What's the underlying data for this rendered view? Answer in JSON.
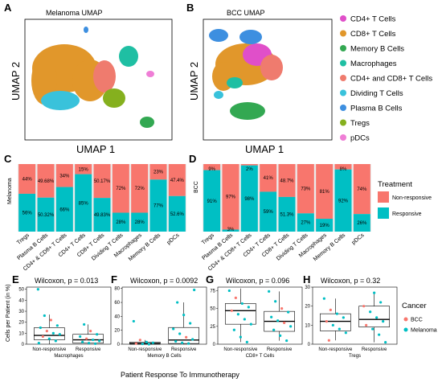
{
  "panels": {
    "A": {
      "label": "A",
      "title": "Melanoma UMAP",
      "xlabel": "UMAP 1",
      "ylabel": "UMAP 2"
    },
    "B": {
      "label": "B",
      "title": "BCC UMAP",
      "xlabel": "UMAP 1",
      "ylabel": "UMAP 2"
    },
    "C": {
      "label": "C",
      "ylabel": "Melanoma"
    },
    "D": {
      "label": "D",
      "ylabel": "BCC"
    },
    "E": {
      "label": "E",
      "title": "Wilcoxon, p = 0.013",
      "xlabel": "Macrophages"
    },
    "F": {
      "label": "F",
      "title": "Wilcoxon, p = 0.0092",
      "xlabel": "Memory B Cells"
    },
    "G": {
      "label": "G",
      "title": "Wilcoxon, p = 0.096",
      "xlabel": "CD8+ T Cells"
    },
    "H": {
      "label": "H",
      "title": "Wilcoxon, p = 0.32",
      "xlabel": "Tregs"
    }
  },
  "cell_legend": [
    {
      "label": "CD4+ T Cells",
      "color": "#e04fc9"
    },
    {
      "label": "CD8+ T Cells",
      "color": "#e1972b"
    },
    {
      "label": "Memory B Cells",
      "color": "#33a852"
    },
    {
      "label": "Macrophages",
      "color": "#1fbfa3"
    },
    {
      "label": "CD4+ and CD8+ T Cells",
      "color": "#ef7b6e"
    },
    {
      "label": "Dividing T Cells",
      "color": "#39c2db"
    },
    {
      "label": "Plasma B Cells",
      "color": "#3d8fe0"
    },
    {
      "label": "Tregs",
      "color": "#85b01e"
    },
    {
      "label": "pDCs",
      "color": "#ef7ed6"
    }
  ],
  "treatment_legend": {
    "title": "Treatment",
    "items": [
      {
        "label": "Non-responsive",
        "color": "#f8766d"
      },
      {
        "label": "Responsive",
        "color": "#00bfc4"
      }
    ]
  },
  "cancer_legend": {
    "title": "Cancer",
    "items": [
      {
        "label": "BCC",
        "color": "#f8766d"
      },
      {
        "label": "Melanoma",
        "color": "#00bfc4"
      }
    ]
  },
  "box_ylabel": "Cells per Patient (in %)",
  "box_xlabel_main": "Patient Response To Immunotherapy",
  "chart_data": [
    {
      "type": "bar",
      "panel": "C",
      "stacked": true,
      "categories": [
        "Tregs",
        "Plasma B Cells",
        "CD4+ & CD8+ T Cells",
        "CD4+ T Cells",
        "CD8+ T Cells",
        "Dividing T Cells",
        "Macrophages",
        "Memory B Cells",
        "pDCs"
      ],
      "series": [
        {
          "name": "Non-responsive",
          "values": [
            44,
            49.68,
            34,
            15,
            50.17,
            72,
            72,
            23,
            47.4
          ],
          "labels": [
            "44%",
            "49.68%",
            "34%",
            "15%",
            "50.17%",
            "72%",
            "72%",
            "23%",
            "47.4%"
          ]
        },
        {
          "name": "Responsive",
          "values": [
            56,
            50.32,
            66,
            85,
            49.83,
            28,
            28,
            77,
            52.6
          ],
          "labels": [
            "56%",
            "50.32%",
            "66%",
            "85%",
            "49.83%",
            "28%",
            "28%",
            "77%",
            "52.6%"
          ]
        }
      ]
    },
    {
      "type": "bar",
      "panel": "D",
      "stacked": true,
      "categories": [
        "Tregs",
        "Plasma B Cells",
        "CD4+ & CD8+ T Cells",
        "CD4+ T Cells",
        "CD8+ T Cells",
        "Dividing T Cells",
        "Macrophages",
        "Memory B Cells",
        "pDCs"
      ],
      "series": [
        {
          "name": "Non-responsive",
          "values": [
            9,
            97,
            2,
            41,
            48.7,
            73,
            81,
            8,
            74
          ],
          "labels": [
            "9%",
            "97%",
            "2%",
            "41%",
            "48.7%",
            "73%",
            "81%",
            "8%",
            "74%"
          ]
        },
        {
          "name": "Responsive",
          "values": [
            91,
            3,
            98,
            59,
            51.3,
            27,
            19,
            92,
            26
          ],
          "labels": [
            "91%",
            "3%",
            "98%",
            "59%",
            "51.3%",
            "27%",
            "19%",
            "92%",
            "26%"
          ]
        }
      ]
    },
    {
      "type": "box",
      "panel": "E",
      "categories": [
        "Non-responsive",
        "Responsive"
      ],
      "ylim": [
        0,
        52
      ],
      "yticks": [
        0,
        10,
        20,
        30,
        40,
        50
      ],
      "boxes": [
        {
          "q1": 4,
          "median": 8,
          "q3": 15,
          "min": 0,
          "max": 27
        },
        {
          "q1": 1,
          "median": 4,
          "q3": 9,
          "min": 0,
          "max": 18
        }
      ],
      "points": [
        {
          "group": 0,
          "y": 50,
          "cancer": "Melanoma"
        },
        {
          "group": 0,
          "y": 26,
          "cancer": "Melanoma"
        },
        {
          "group": 0,
          "y": 22,
          "cancer": "BCC"
        },
        {
          "group": 0,
          "y": 17,
          "cancer": "Melanoma"
        },
        {
          "group": 0,
          "y": 15,
          "cancer": "Melanoma"
        },
        {
          "group": 0,
          "y": 12,
          "cancer": "BCC"
        },
        {
          "group": 0,
          "y": 10,
          "cancer": "Melanoma"
        },
        {
          "group": 0,
          "y": 9,
          "cancer": "Melanoma"
        },
        {
          "group": 0,
          "y": 7,
          "cancer": "BCC"
        },
        {
          "group": 0,
          "y": 5,
          "cancer": "Melanoma"
        },
        {
          "group": 0,
          "y": 3,
          "cancer": "Melanoma"
        },
        {
          "group": 0,
          "y": 1,
          "cancer": "Melanoma"
        },
        {
          "group": 1,
          "y": 18,
          "cancer": "Melanoma"
        },
        {
          "group": 1,
          "y": 12,
          "cancer": "BCC"
        },
        {
          "group": 1,
          "y": 9,
          "cancer": "Melanoma"
        },
        {
          "group": 1,
          "y": 7,
          "cancer": "Melanoma"
        },
        {
          "group": 1,
          "y": 5,
          "cancer": "BCC"
        },
        {
          "group": 1,
          "y": 4,
          "cancer": "Melanoma"
        },
        {
          "group": 1,
          "y": 3,
          "cancer": "Melanoma"
        },
        {
          "group": 1,
          "y": 2,
          "cancer": "Melanoma"
        },
        {
          "group": 1,
          "y": 1,
          "cancer": "Melanoma"
        },
        {
          "group": 1,
          "y": 0.5,
          "cancer": "Melanoma"
        }
      ]
    },
    {
      "type": "box",
      "panel": "F",
      "categories": [
        "Non-responsive",
        "Responsive"
      ],
      "ylim": [
        0,
        82
      ],
      "yticks": [
        0,
        20,
        40,
        60,
        80
      ],
      "boxes": [
        {
          "q1": 0,
          "median": 1,
          "q3": 3,
          "min": 0,
          "max": 6
        },
        {
          "q1": 1,
          "median": 6,
          "q3": 24,
          "min": 0,
          "max": 60
        }
      ],
      "points": [
        {
          "group": 0,
          "y": 33,
          "cancer": "Melanoma"
        },
        {
          "group": 0,
          "y": 6,
          "cancer": "BCC"
        },
        {
          "group": 0,
          "y": 3,
          "cancer": "Melanoma"
        },
        {
          "group": 0,
          "y": 2,
          "cancer": "Melanoma"
        },
        {
          "group": 0,
          "y": 1,
          "cancer": "BCC"
        },
        {
          "group": 0,
          "y": 0.5,
          "cancer": "Melanoma"
        },
        {
          "group": 0,
          "y": 0,
          "cancer": "Melanoma"
        },
        {
          "group": 1,
          "y": 78,
          "cancer": "Melanoma"
        },
        {
          "group": 1,
          "y": 60,
          "cancer": "Melanoma"
        },
        {
          "group": 1,
          "y": 42,
          "cancer": "Melanoma"
        },
        {
          "group": 1,
          "y": 30,
          "cancer": "Melanoma"
        },
        {
          "group": 1,
          "y": 22,
          "cancer": "Melanoma"
        },
        {
          "group": 1,
          "y": 15,
          "cancer": "Melanoma"
        },
        {
          "group": 1,
          "y": 10,
          "cancer": "BCC"
        },
        {
          "group": 1,
          "y": 7,
          "cancer": "Melanoma"
        },
        {
          "group": 1,
          "y": 4,
          "cancer": "Melanoma"
        },
        {
          "group": 1,
          "y": 2,
          "cancer": "Melanoma"
        },
        {
          "group": 1,
          "y": 1,
          "cancer": "Melanoma"
        }
      ]
    },
    {
      "type": "box",
      "panel": "G",
      "categories": [
        "Non-responsive",
        "Responsive"
      ],
      "ylim": [
        0,
        80
      ],
      "yticks": [
        0,
        25,
        50,
        75
      ],
      "boxes": [
        {
          "q1": 28,
          "median": 47,
          "q3": 57,
          "min": 3,
          "max": 78
        },
        {
          "q1": 18,
          "median": 32,
          "q3": 46,
          "min": 5,
          "max": 74
        }
      ],
      "points": [
        {
          "group": 0,
          "y": 75,
          "cancer": "Melanoma"
        },
        {
          "group": 0,
          "y": 65,
          "cancer": "BCC"
        },
        {
          "group": 0,
          "y": 57,
          "cancer": "Melanoma"
        },
        {
          "group": 0,
          "y": 52,
          "cancer": "Melanoma"
        },
        {
          "group": 0,
          "y": 47,
          "cancer": "BCC"
        },
        {
          "group": 0,
          "y": 42,
          "cancer": "Melanoma"
        },
        {
          "group": 0,
          "y": 35,
          "cancer": "Melanoma"
        },
        {
          "group": 0,
          "y": 28,
          "cancer": "Melanoma"
        },
        {
          "group": 0,
          "y": 20,
          "cancer": "Melanoma"
        },
        {
          "group": 0,
          "y": 10,
          "cancer": "Melanoma"
        },
        {
          "group": 0,
          "y": 3,
          "cancer": "Melanoma"
        },
        {
          "group": 1,
          "y": 74,
          "cancer": "Melanoma"
        },
        {
          "group": 1,
          "y": 60,
          "cancer": "Melanoma"
        },
        {
          "group": 1,
          "y": 50,
          "cancer": "BCC"
        },
        {
          "group": 1,
          "y": 45,
          "cancer": "Melanoma"
        },
        {
          "group": 1,
          "y": 38,
          "cancer": "Melanoma"
        },
        {
          "group": 1,
          "y": 33,
          "cancer": "Melanoma"
        },
        {
          "group": 1,
          "y": 30,
          "cancer": "BCC"
        },
        {
          "group": 1,
          "y": 25,
          "cancer": "Melanoma"
        },
        {
          "group": 1,
          "y": 20,
          "cancer": "Melanoma"
        },
        {
          "group": 1,
          "y": 12,
          "cancer": "Melanoma"
        },
        {
          "group": 1,
          "y": 5,
          "cancer": "Melanoma"
        }
      ]
    },
    {
      "type": "box",
      "panel": "H",
      "categories": [
        "Non-responsive",
        "Responsive"
      ],
      "ylim": [
        0,
        30
      ],
      "yticks": [
        0,
        10,
        20,
        30
      ],
      "boxes": [
        {
          "q1": 7,
          "median": 12,
          "q3": 16,
          "min": 2,
          "max": 24
        },
        {
          "q1": 9,
          "median": 13,
          "q3": 20,
          "min": 1,
          "max": 27
        }
      ],
      "points": [
        {
          "group": 0,
          "y": 24,
          "cancer": "Melanoma"
        },
        {
          "group": 0,
          "y": 18,
          "cancer": "BCC"
        },
        {
          "group": 0,
          "y": 16,
          "cancer": "Melanoma"
        },
        {
          "group": 0,
          "y": 14,
          "cancer": "Melanoma"
        },
        {
          "group": 0,
          "y": 12,
          "cancer": "BCC"
        },
        {
          "group": 0,
          "y": 10,
          "cancer": "Melanoma"
        },
        {
          "group": 0,
          "y": 8,
          "cancer": "Melanoma"
        },
        {
          "group": 0,
          "y": 6,
          "cancer": "Melanoma"
        },
        {
          "group": 0,
          "y": 2,
          "cancer": "BCC"
        },
        {
          "group": 1,
          "y": 27,
          "cancer": "Melanoma"
        },
        {
          "group": 1,
          "y": 22,
          "cancer": "Melanoma"
        },
        {
          "group": 1,
          "y": 20,
          "cancer": "BCC"
        },
        {
          "group": 1,
          "y": 17,
          "cancer": "Melanoma"
        },
        {
          "group": 1,
          "y": 14,
          "cancer": "Melanoma"
        },
        {
          "group": 1,
          "y": 12,
          "cancer": "Melanoma"
        },
        {
          "group": 1,
          "y": 10,
          "cancer": "BCC"
        },
        {
          "group": 1,
          "y": 8,
          "cancer": "Melanoma"
        },
        {
          "group": 1,
          "y": 5,
          "cancer": "Melanoma"
        },
        {
          "group": 1,
          "y": 1,
          "cancer": "Melanoma"
        }
      ]
    }
  ]
}
